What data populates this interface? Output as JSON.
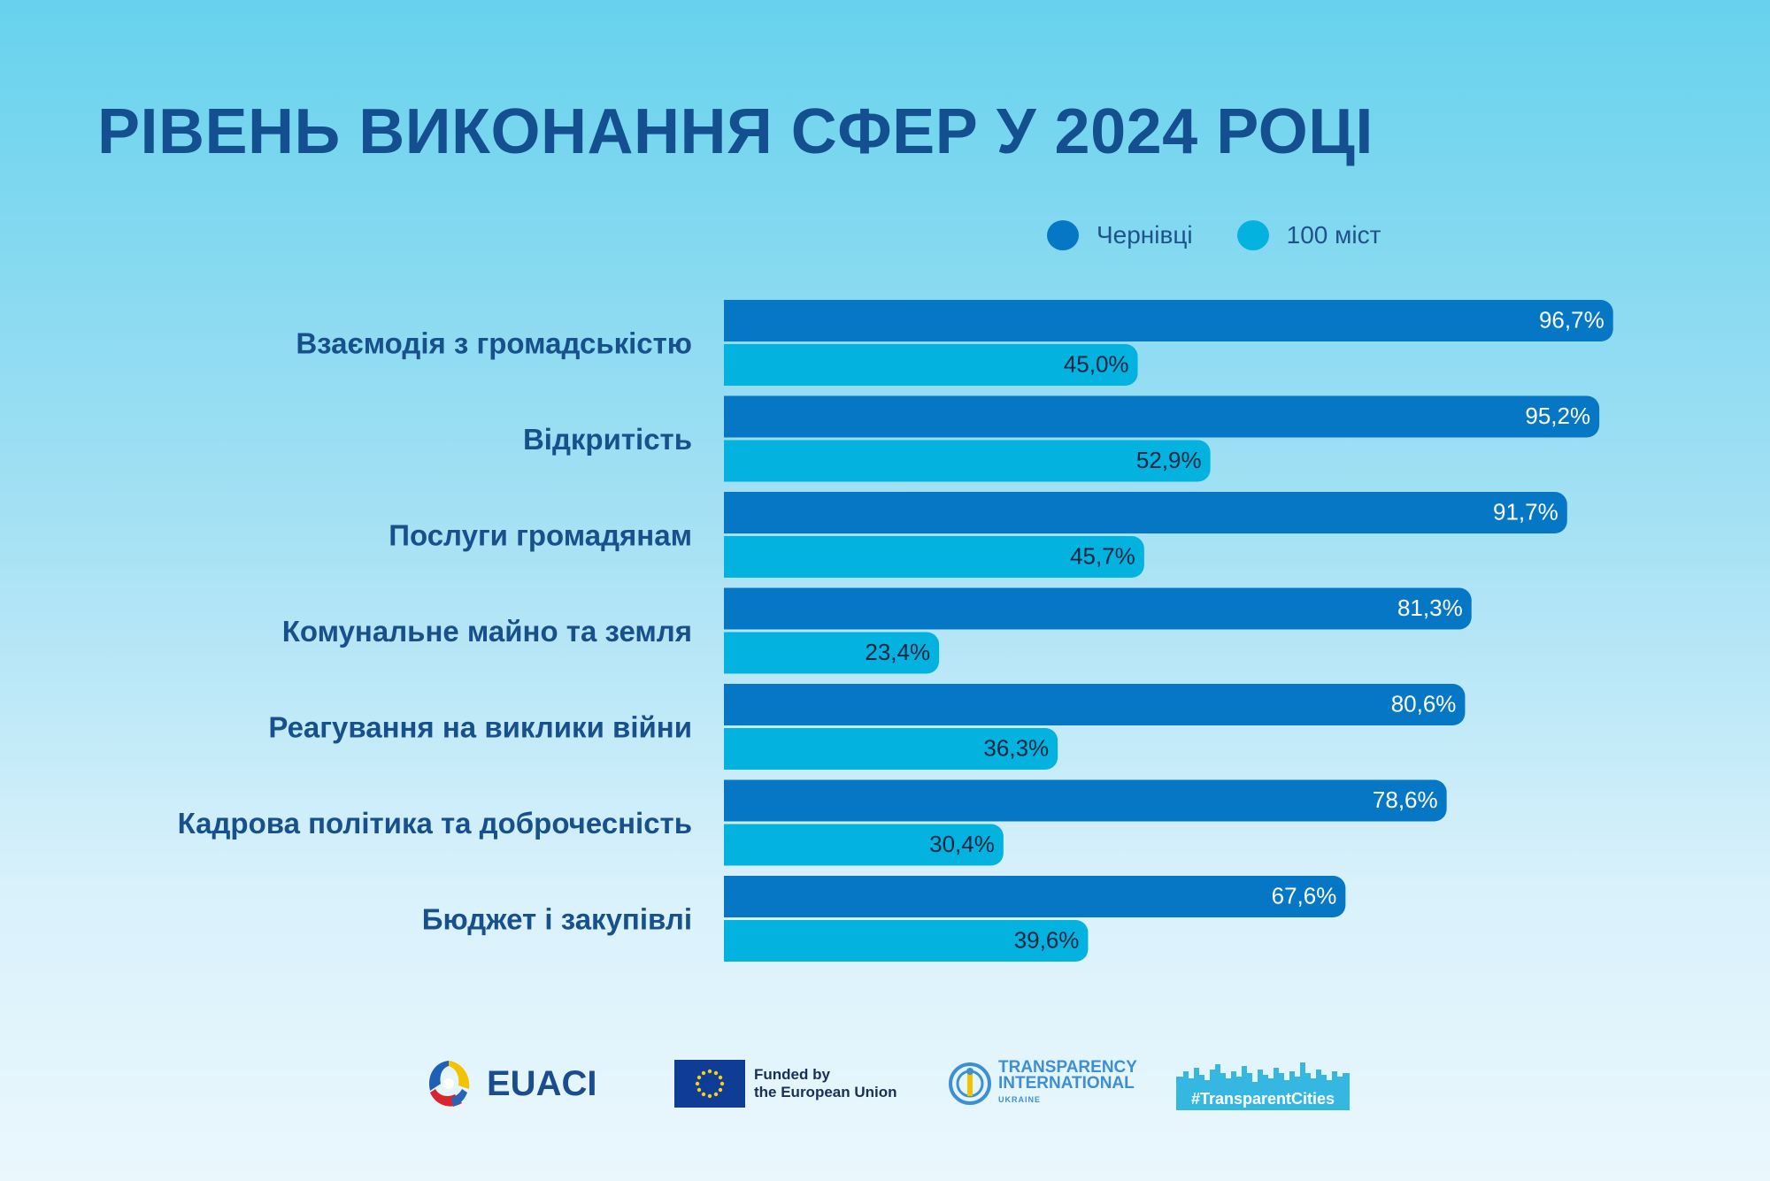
{
  "chart_data": {
    "type": "bar",
    "orientation": "horizontal",
    "title": "РІВЕНЬ ВИКОНАННЯ СФЕР У 2024 РОЦІ",
    "categories": [
      "Взаємодія з громадськістю",
      "Відкритість",
      "Послуги громадянам",
      "Комунальне майно та земля",
      "Реагування на виклики війни",
      "Кадрова політика та доброчесність",
      "Бюджет і закупівлі"
    ],
    "series": [
      {
        "name": "Чернівці",
        "values": [
          96.7,
          95.2,
          91.7,
          81.3,
          80.6,
          78.6,
          67.6
        ],
        "labels": [
          "96,7%",
          "95,2%",
          "91,7%",
          "81,3%",
          "80,6%",
          "78,6%",
          "67,6%"
        ],
        "color": "#0677c5",
        "label_color": "#ffffff"
      },
      {
        "name": "100 міст",
        "values": [
          45.0,
          52.9,
          45.7,
          23.4,
          36.3,
          30.4,
          39.6
        ],
        "labels": [
          "45,0%",
          "52,9%",
          "45,7%",
          "23,4%",
          "36,3%",
          "30,4%",
          "39,6%"
        ],
        "color": "#04b2df",
        "label_color": "#0a2540"
      }
    ],
    "xlim": [
      0,
      100
    ],
    "grid": false,
    "legend_position": "top-right"
  },
  "footer": {
    "euaci": "EUACI",
    "eu_funded_line1": "Funded by",
    "eu_funded_line2": "the European Union",
    "ti_line1": "TRANSPARENCY",
    "ti_line2": "INTERNATIONAL",
    "ti_line3": "UKRAINE",
    "tc": "#TransparentCities",
    "icons": [
      "euaci-emblem-icon",
      "eu-flag-icon",
      "transparency-international-icon",
      "city-skyline-icon"
    ]
  }
}
